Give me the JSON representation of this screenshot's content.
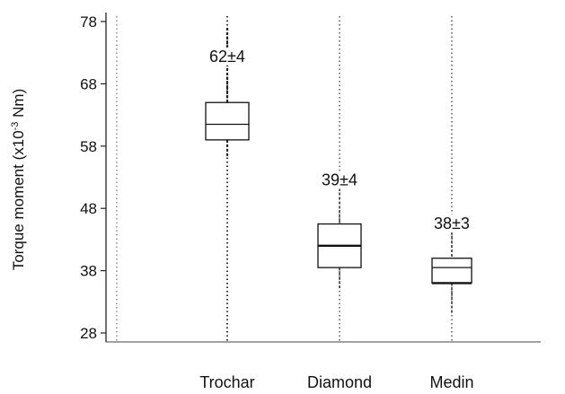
{
  "chart_data": {
    "type": "box",
    "title": "",
    "xlabel": "",
    "ylabel": "Torque moment (x10",
    "ylabel_exponent": "-3",
    "ylabel_unit": " Nm)",
    "ylim": [
      28,
      78
    ],
    "yticks": [
      "78",
      "68",
      "58",
      "48",
      "38",
      "28"
    ],
    "grid": false,
    "categories": [
      "Trochar",
      "Diamond",
      "Medin"
    ],
    "boxes": [
      {
        "category": "Trochar",
        "whisker_low": 56,
        "q1": 59,
        "median": 61.5,
        "q3": 65,
        "whisker_high": 77,
        "annotation": "62±4"
      },
      {
        "category": "Diamond",
        "whisker_low": 35,
        "q1": 38.5,
        "median": 42,
        "q3": 45.5,
        "whisker_high": 52,
        "annotation": "39±4"
      },
      {
        "category": "Medin",
        "whisker_low": 31,
        "q1": 36,
        "median": 38.5,
        "q3": 40,
        "whisker_high": 45,
        "annotation": "38±3"
      }
    ]
  }
}
